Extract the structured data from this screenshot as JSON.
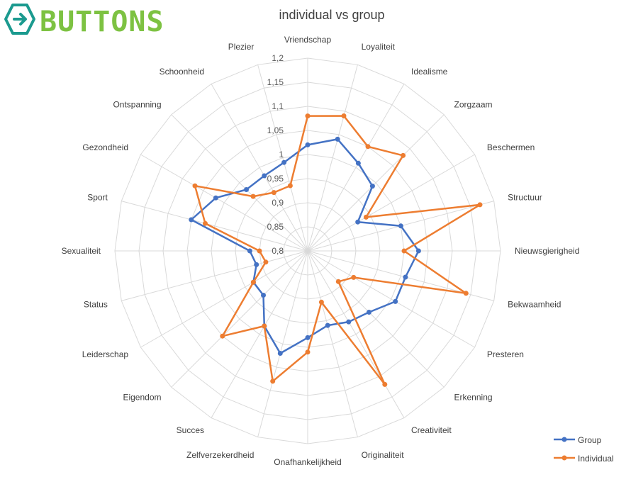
{
  "logo": {
    "text": "BUTTONS",
    "colors": [
      "#7dc242",
      "#1b9a8f"
    ]
  },
  "chart_data": {
    "type": "radar",
    "title": "individual vs group",
    "categories": [
      "Vriendschap",
      "Loyaliteit",
      "Idealisme",
      "Zorgzaam",
      "Beschermen",
      "Structuur",
      "Nieuwsgierigheid",
      "Bekwaamheid",
      "Presteren",
      "Erkenning",
      "Creativiteit",
      "Originaliteit",
      "Onafhankelijkheid",
      "Zelfverzekerdheid",
      "Succes",
      "Eigendom",
      "Leiderschap",
      "Status",
      "Sexualiteit",
      "Sport",
      "Gezondheid",
      "Ontspanning",
      "Schoonheid",
      "Plezier"
    ],
    "rlim": [
      0.8,
      1.2
    ],
    "tick_values": [
      0.8,
      0.85,
      0.9,
      0.95,
      1,
      1.05,
      1.1,
      1.15,
      1.2
    ],
    "tick_labels": [
      "0,8",
      "0,85",
      "0,9",
      "0,95",
      "1",
      "1,05",
      "1,1",
      "1,15",
      "1,2"
    ],
    "series": [
      {
        "name": "Group",
        "color": "#4472c4",
        "values": [
          1.02,
          1.04,
          1.01,
          0.99,
          0.92,
          1.0,
          1.03,
          1.01,
          1.01,
          0.98,
          0.97,
          0.96,
          0.98,
          1.02,
          0.98,
          0.93,
          0.93,
          0.91,
          0.92,
          1.05,
          1.02,
          0.98,
          0.98,
          0.99
        ]
      },
      {
        "name": "Individual",
        "color": "#ed7d31",
        "values": [
          1.08,
          1.09,
          1.05,
          1.08,
          0.94,
          1.17,
          1.0,
          1.14,
          0.91,
          0.89,
          1.12,
          0.91,
          1.01,
          1.08,
          0.98,
          1.05,
          0.93,
          0.89,
          0.9,
          1.02,
          1.07,
          0.96,
          0.94,
          0.94
        ]
      }
    ],
    "legend": {
      "position": "bottom-right"
    },
    "grid": true
  }
}
